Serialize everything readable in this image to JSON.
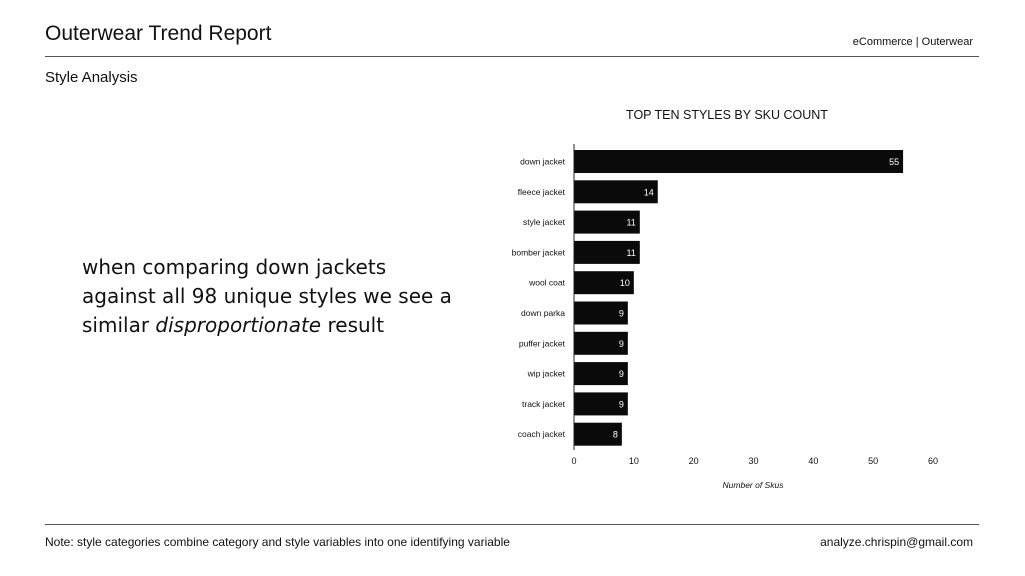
{
  "header": {
    "title": "Outerwear Trend Report",
    "right_tag": "eCommerce | Outerwear",
    "section": "Style Analysis"
  },
  "body": {
    "text_line1": "when comparing down jackets",
    "text_line2": "against all 98 unique styles we see a",
    "text_line3_pre": "similar ",
    "text_line3_em": "disproportionate",
    "text_line3_post": " result"
  },
  "footer": {
    "note": "Note: style categories combine category and style variables into one identifying variable",
    "email": "analyze.chrispin@gmail.com"
  },
  "chart_data": {
    "type": "bar",
    "orientation": "horizontal",
    "title": "TOP TEN STYLES BY SKU COUNT",
    "xlabel": "Number of Skus",
    "ylabel": "",
    "categories": [
      "down jacket",
      "fleece jacket",
      "style jacket",
      "bomber jacket",
      "wool coat",
      "down parka",
      "puffer jacket",
      "wip jacket",
      "track jacket",
      "coach jacket"
    ],
    "values": [
      55,
      14,
      11,
      11,
      10,
      9,
      9,
      9,
      9,
      8
    ],
    "xlim": [
      0,
      60
    ],
    "xticks": [
      "0",
      "10",
      "20",
      "30",
      "40",
      "50",
      "60"
    ],
    "grid": false,
    "bar_color": "#0a0a0a",
    "label_color": "#ffffff"
  }
}
